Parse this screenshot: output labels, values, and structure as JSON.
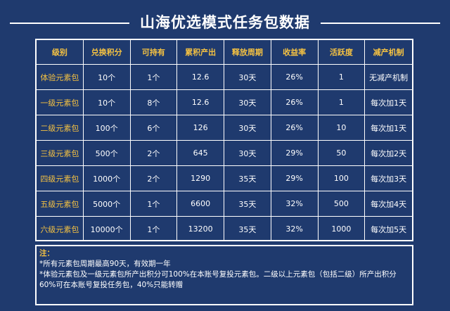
{
  "title": "山海优选模式任务包数据",
  "table": {
    "headers": [
      "级别",
      "兑换积分",
      "可持有",
      "累积产出",
      "释放周期",
      "收益率",
      "活跃度",
      "减产机制"
    ],
    "rows": [
      [
        "体验元素包",
        "10个",
        "1个",
        "12.6",
        "30天",
        "26%",
        "1",
        "无减产机制"
      ],
      [
        "一级元素包",
        "10个",
        "8个",
        "12.6",
        "30天",
        "26%",
        "1",
        "每次加1天"
      ],
      [
        "二级元素包",
        "100个",
        "6个",
        "126",
        "30天",
        "26%",
        "10",
        "每次加1天"
      ],
      [
        "三级元素包",
        "500个",
        "2个",
        "645",
        "30天",
        "29%",
        "50",
        "每次加2天"
      ],
      [
        "四级元素包",
        "1000个",
        "2个",
        "1290",
        "35天",
        "29%",
        "100",
        "每次加3天"
      ],
      [
        "五级元素包",
        "5000个",
        "1个",
        "6600",
        "35天",
        "32%",
        "500",
        "每次加4天"
      ],
      [
        "六级元素包",
        "10000个",
        "1个",
        "13200",
        "35天",
        "32%",
        "1000",
        "每次加5天"
      ]
    ]
  },
  "note": {
    "head": "注：",
    "lines": [
      "*所有元素包周期最高90天，有效期一年",
      "*体验元素包及一级元素包所产出积分可100%在本账号复投元素包。二级以上元素包（包括二级）所产出积分60%可在本账号复投任务包，40%只能转赠"
    ]
  }
}
